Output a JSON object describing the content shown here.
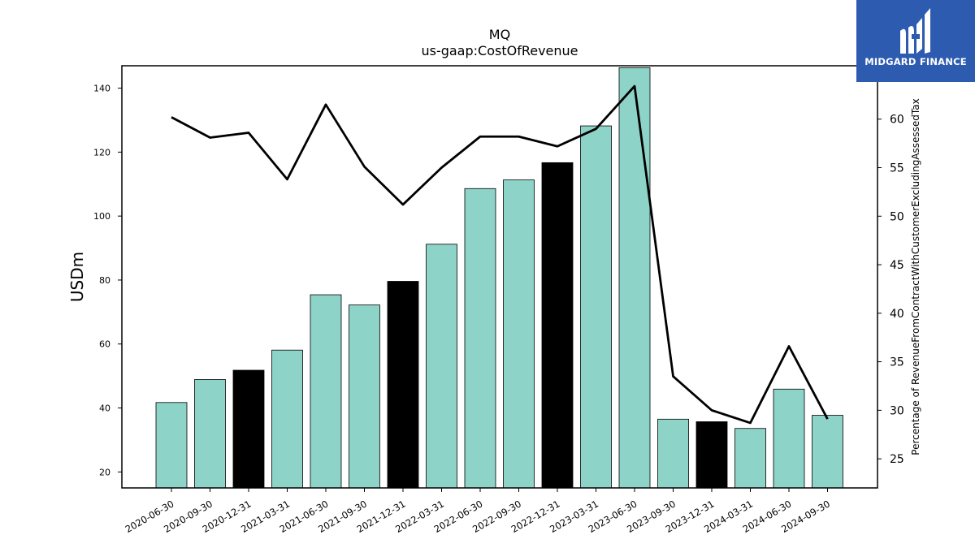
{
  "brand": {
    "name": "MIDGARD FINANCE",
    "logo_color": "#2d5bb0",
    "icon": "midgard-logo-icon"
  },
  "chart_data": {
    "type": "bar",
    "title": "MQ",
    "subtitle": "us-gaap:CostOfRevenue",
    "ylabel": "USDm",
    "y2label": "Percentage of RevenueFromContractWithCustomerExcludingAssessedTax",
    "ylim": [
      15,
      147
    ],
    "y2lim": [
      22,
      65.5
    ],
    "yticks": [
      20,
      40,
      60,
      80,
      100,
      120,
      140
    ],
    "y2ticks": [
      25,
      30,
      35,
      40,
      45,
      50,
      55,
      60
    ],
    "grid": false,
    "categories": [
      "2020-06-30",
      "2020-09-30",
      "2020-12-31",
      "2021-03-31",
      "2021-06-30",
      "2021-09-30",
      "2021-12-31",
      "2022-03-31",
      "2022-06-30",
      "2022-09-30",
      "2022-12-31",
      "2023-03-31",
      "2023-06-30",
      "2023-09-30",
      "2023-12-31",
      "2024-03-31",
      "2024-06-30",
      "2024-09-30"
    ],
    "series": [
      {
        "kind": "bar",
        "axis": "left",
        "values": [
          41.7,
          48.9,
          51.8,
          58.1,
          75.4,
          72.2,
          79.6,
          91.2,
          108.6,
          111.3,
          116.7,
          128.2,
          146.4,
          36.5,
          35.7,
          33.6,
          45.9,
          37.7
        ],
        "highlight": [
          false,
          false,
          true,
          false,
          false,
          false,
          true,
          false,
          false,
          false,
          true,
          false,
          false,
          false,
          true,
          false,
          false,
          false
        ],
        "color": "#8dd3c7",
        "highlight_color": "#000000"
      },
      {
        "kind": "line",
        "axis": "right",
        "values": [
          60.2,
          58.1,
          58.6,
          53.8,
          61.5,
          55.1,
          51.2,
          55.0,
          58.2,
          58.2,
          57.2,
          59.0,
          63.4,
          33.5,
          30.0,
          28.7,
          36.6,
          29.1
        ],
        "color": "#000000"
      }
    ]
  }
}
